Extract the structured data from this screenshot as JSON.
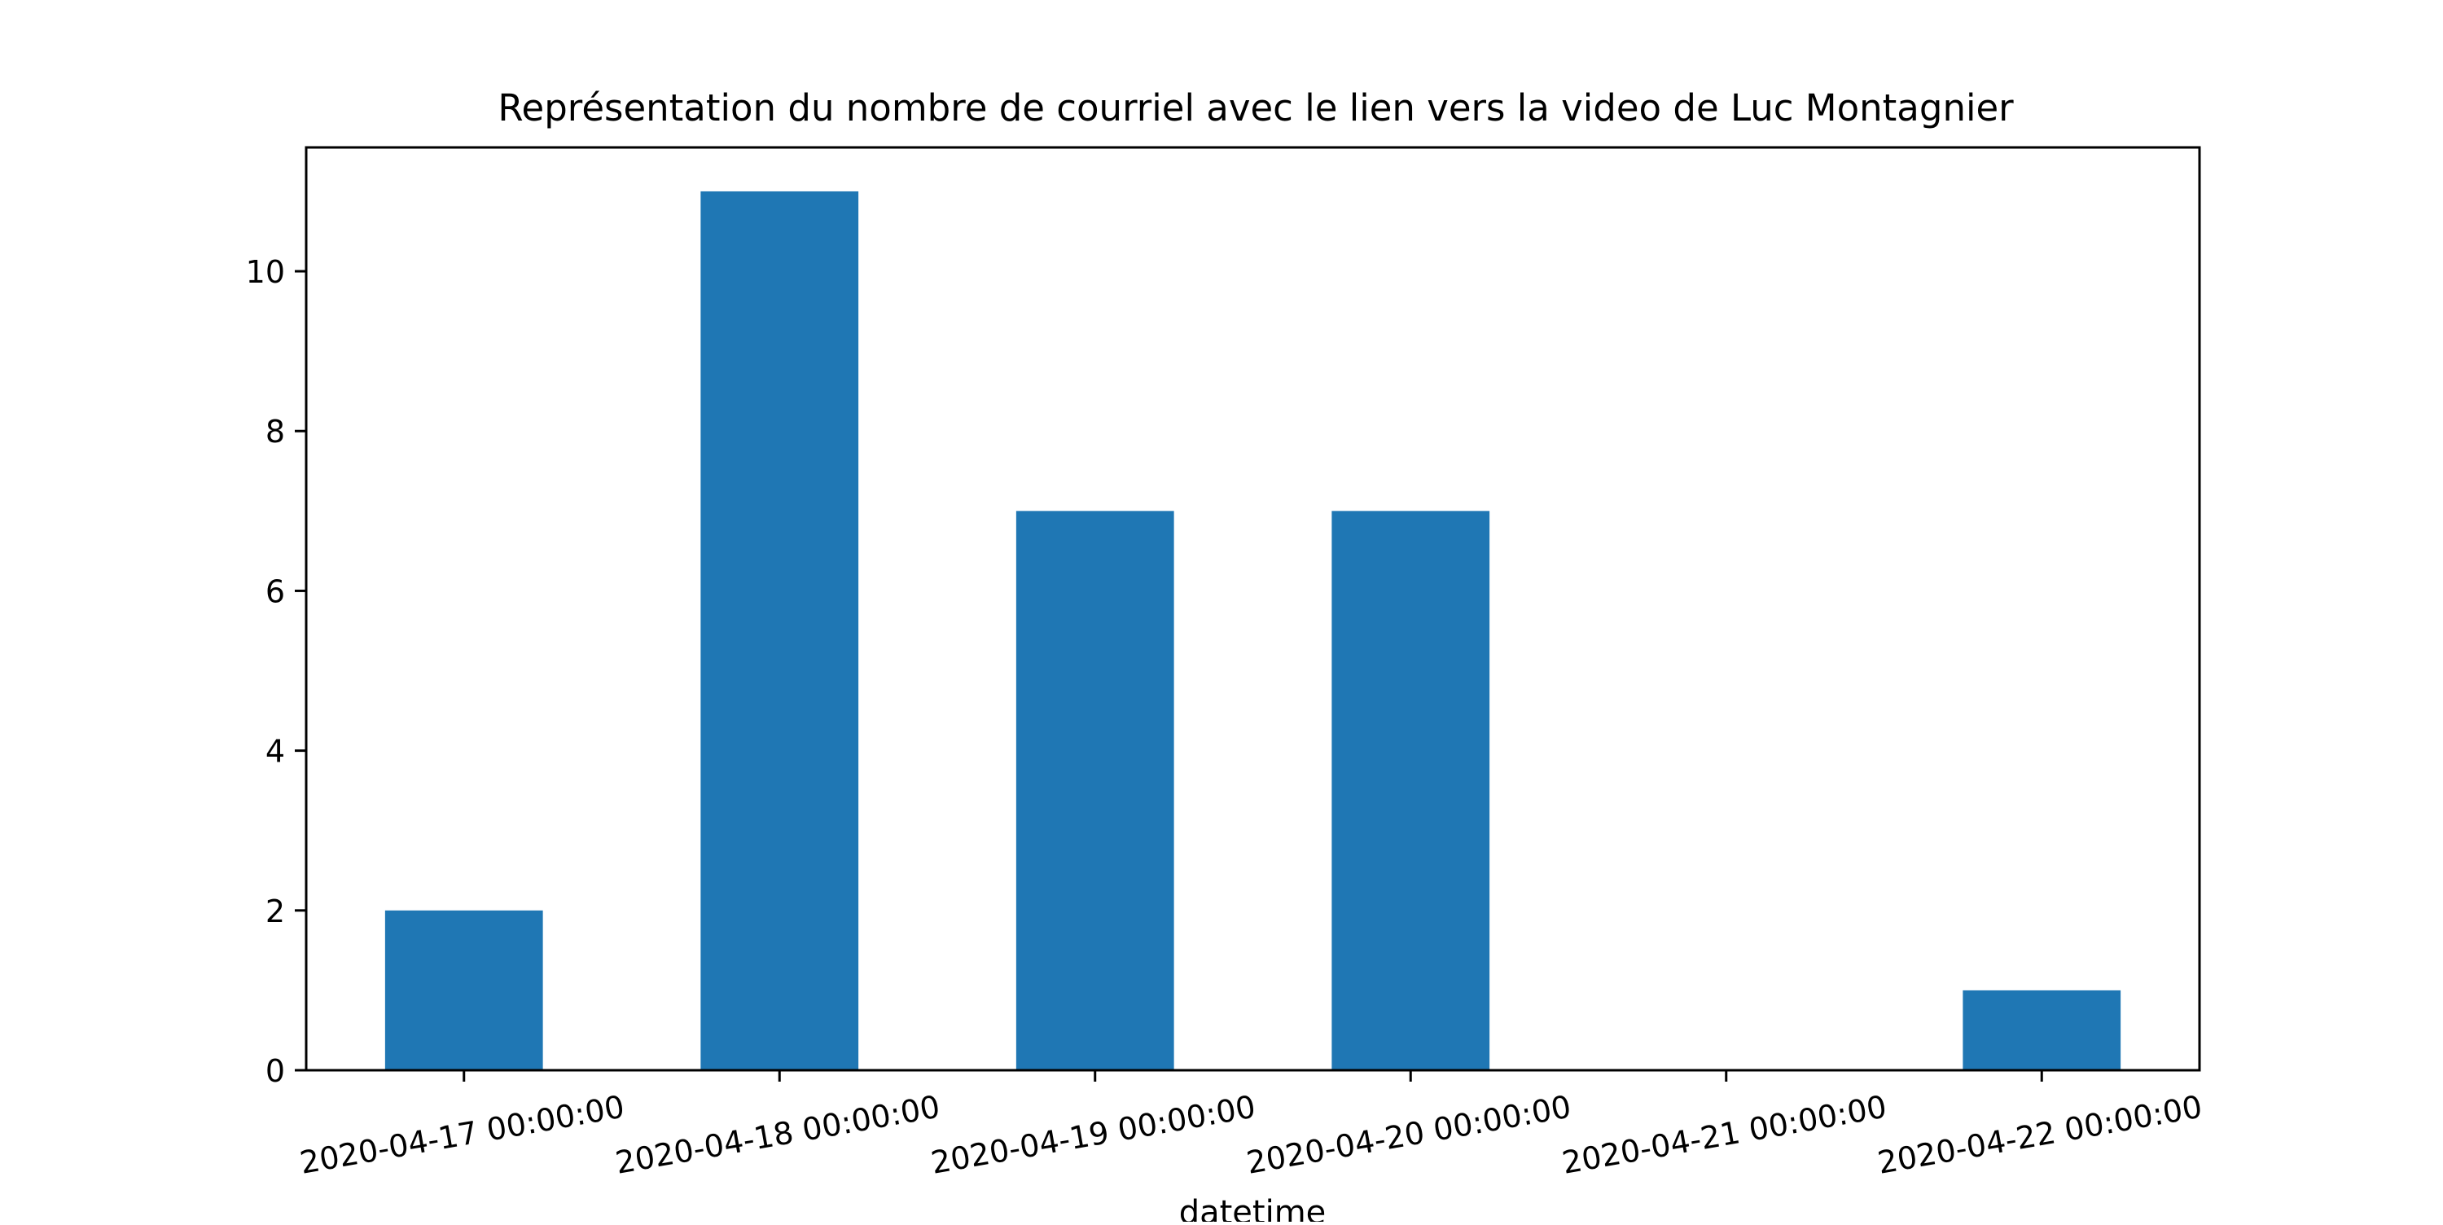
{
  "chart_data": {
    "type": "bar",
    "title": "Représentation du nombre de courriel avec le lien vers la video de Luc Montagnier",
    "xlabel": "datetime",
    "ylabel": "",
    "categories": [
      "2020-04-17 00:00:00",
      "2020-04-18 00:00:00",
      "2020-04-19 00:00:00",
      "2020-04-20 00:00:00",
      "2020-04-21 00:00:00",
      "2020-04-22 00:00:00"
    ],
    "values": [
      2,
      11,
      7,
      7,
      0,
      1
    ],
    "ylim": [
      0,
      11.55
    ],
    "yticks": [
      0,
      2,
      4,
      6,
      8,
      10
    ],
    "grid": false,
    "legend": "none",
    "bar_color": "#1f77b4"
  }
}
